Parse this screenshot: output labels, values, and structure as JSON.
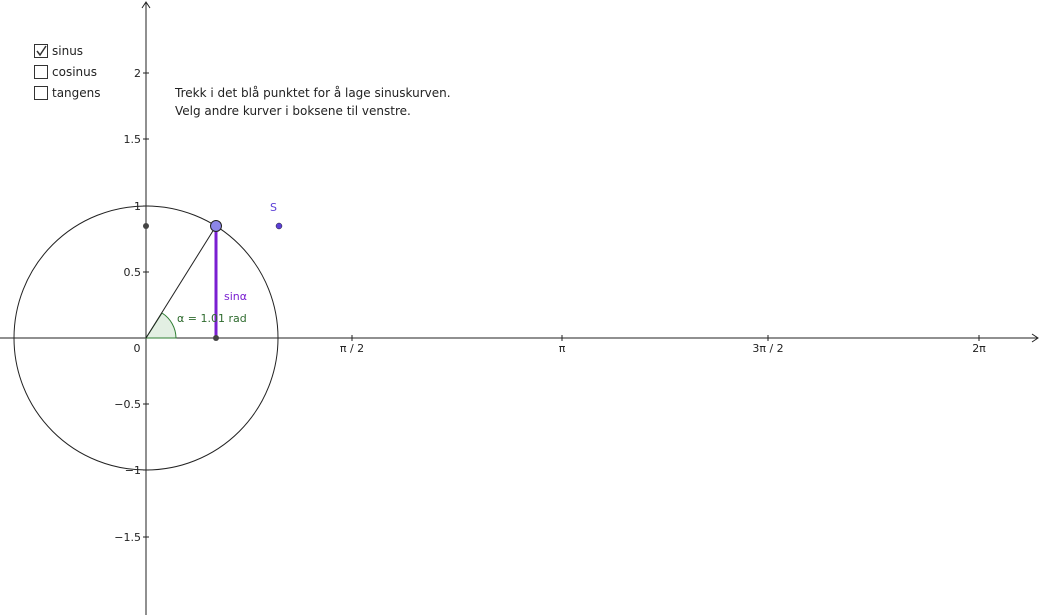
{
  "checkboxes": [
    {
      "label": "sinus",
      "checked": true
    },
    {
      "label": "cosinus",
      "checked": false
    },
    {
      "label": "tangens",
      "checked": false
    }
  ],
  "instructions": [
    "Trekk i det blå punktet for å lage sinuskurven.",
    "Velg andre kurver i boksene til venstre."
  ],
  "x_axis_labels": [
    "π / 2",
    "π",
    "3π / 2",
    "2π"
  ],
  "y_axis_labels": [
    "2",
    "1.5",
    "1",
    "0.5",
    "0",
    "−0.5",
    "−1",
    "−1.5"
  ],
  "point_label": "S",
  "segment_label": "sinα",
  "angle_label": "α = 1.01 rad"
}
